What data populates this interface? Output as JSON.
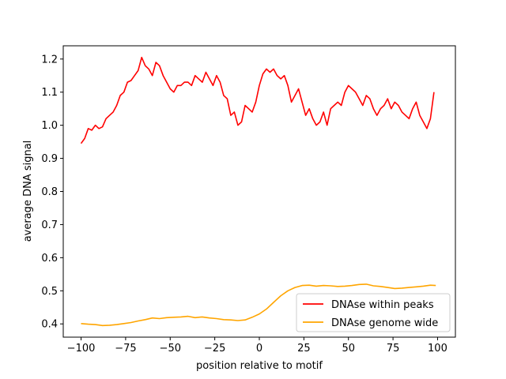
{
  "chart_data": {
    "type": "line",
    "xlabel": "position relative to motif",
    "ylabel": "average DNA signal",
    "xlim": [
      -110,
      110
    ],
    "ylim": [
      0.36,
      1.24
    ],
    "xticks": [
      -100,
      -75,
      -50,
      -25,
      0,
      25,
      50,
      75,
      100
    ],
    "xtick_labels": [
      "−100",
      "−75",
      "−50",
      "−25",
      "0",
      "25",
      "50",
      "75",
      "100"
    ],
    "yticks": [
      0.4,
      0.5,
      0.6,
      0.7,
      0.8,
      0.9,
      1.0,
      1.1,
      1.2
    ],
    "ytick_labels": [
      "0.4",
      "0.5",
      "0.6",
      "0.7",
      "0.8",
      "0.9",
      "1.0",
      "1.1",
      "1.2"
    ],
    "legend_position": "bottom-right",
    "grid": false,
    "series": [
      {
        "name": "DNAse within peaks",
        "color": "#ff0000",
        "x": [
          -100,
          -98,
          -96,
          -94,
          -92,
          -90,
          -88,
          -86,
          -84,
          -82,
          -80,
          -78,
          -76,
          -74,
          -72,
          -70,
          -68,
          -66,
          -64,
          -62,
          -60,
          -58,
          -56,
          -54,
          -52,
          -50,
          -48,
          -46,
          -44,
          -42,
          -40,
          -38,
          -36,
          -34,
          -32,
          -30,
          -28,
          -26,
          -24,
          -22,
          -20,
          -18,
          -16,
          -14,
          -12,
          -10,
          -8,
          -6,
          -4,
          -2,
          0,
          2,
          4,
          6,
          8,
          10,
          12,
          14,
          16,
          18,
          20,
          22,
          24,
          26,
          28,
          30,
          32,
          34,
          36,
          38,
          40,
          42,
          44,
          46,
          48,
          50,
          52,
          54,
          56,
          58,
          60,
          62,
          64,
          66,
          68,
          70,
          72,
          74,
          76,
          78,
          80,
          82,
          84,
          86,
          88,
          90,
          92,
          94,
          96,
          98
        ],
        "y": [
          0.945,
          0.96,
          0.99,
          0.985,
          1.0,
          0.99,
          0.995,
          1.02,
          1.03,
          1.04,
          1.06,
          1.09,
          1.1,
          1.13,
          1.135,
          1.15,
          1.165,
          1.205,
          1.18,
          1.17,
          1.15,
          1.19,
          1.18,
          1.15,
          1.13,
          1.11,
          1.1,
          1.12,
          1.12,
          1.13,
          1.13,
          1.12,
          1.15,
          1.14,
          1.13,
          1.16,
          1.14,
          1.12,
          1.15,
          1.13,
          1.09,
          1.08,
          1.03,
          1.04,
          1.0,
          1.01,
          1.06,
          1.05,
          1.04,
          1.07,
          1.12,
          1.155,
          1.17,
          1.16,
          1.17,
          1.15,
          1.14,
          1.15,
          1.12,
          1.07,
          1.09,
          1.11,
          1.07,
          1.03,
          1.05,
          1.02,
          1.0,
          1.01,
          1.04,
          1.0,
          1.05,
          1.06,
          1.07,
          1.06,
          1.1,
          1.12,
          1.11,
          1.1,
          1.08,
          1.06,
          1.09,
          1.08,
          1.05,
          1.03,
          1.05,
          1.06,
          1.08,
          1.05,
          1.07,
          1.06,
          1.04,
          1.03,
          1.02,
          1.05,
          1.07,
          1.03,
          1.01,
          0.99,
          1.02,
          1.1
        ]
      },
      {
        "name": "DNAse genome wide",
        "color": "#ffa500",
        "x": [
          -100,
          -96,
          -92,
          -88,
          -84,
          -80,
          -76,
          -72,
          -68,
          -64,
          -60,
          -56,
          -52,
          -48,
          -44,
          -40,
          -36,
          -32,
          -28,
          -24,
          -20,
          -16,
          -12,
          -8,
          -4,
          0,
          4,
          8,
          12,
          16,
          20,
          24,
          28,
          32,
          36,
          40,
          44,
          48,
          52,
          56,
          60,
          64,
          68,
          72,
          76,
          80,
          84,
          88,
          92,
          96,
          99
        ],
        "y": [
          0.401,
          0.399,
          0.398,
          0.395,
          0.396,
          0.398,
          0.401,
          0.404,
          0.409,
          0.413,
          0.418,
          0.416,
          0.419,
          0.42,
          0.421,
          0.423,
          0.419,
          0.421,
          0.418,
          0.416,
          0.413,
          0.412,
          0.41,
          0.412,
          0.42,
          0.43,
          0.445,
          0.465,
          0.485,
          0.5,
          0.51,
          0.516,
          0.517,
          0.514,
          0.516,
          0.515,
          0.513,
          0.514,
          0.516,
          0.519,
          0.52,
          0.515,
          0.513,
          0.51,
          0.507,
          0.508,
          0.51,
          0.512,
          0.514,
          0.517,
          0.516
        ]
      }
    ]
  }
}
